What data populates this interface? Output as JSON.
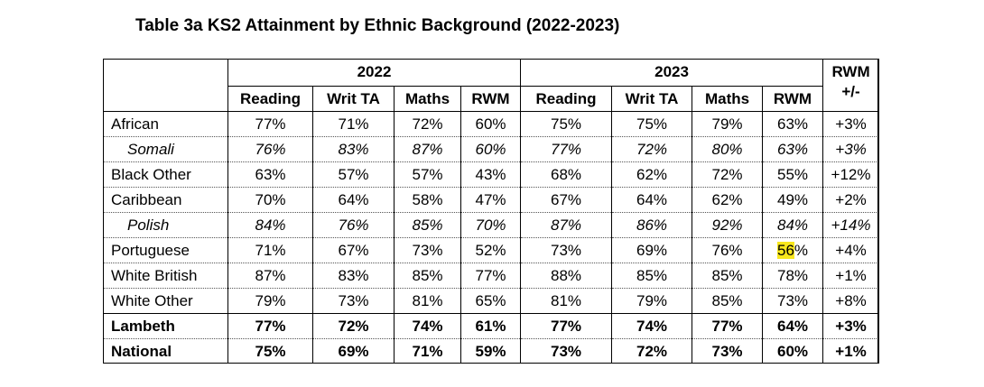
{
  "title": "Table 3a KS2 Attainment by Ethnic Background (2022-2023)",
  "headers": {
    "year1": "2022",
    "year2": "2023",
    "change": "RWM +/-",
    "cols": [
      "Reading",
      "Writ TA",
      "Maths",
      "RWM",
      "Reading",
      "Writ TA",
      "Maths",
      "RWM"
    ]
  },
  "rows": [
    {
      "name": "African",
      "style": "normal",
      "values": [
        "77%",
        "71%",
        "72%",
        "60%",
        "75%",
        "75%",
        "79%",
        "63%",
        "+3%"
      ]
    },
    {
      "name": "Somali",
      "style": "italic",
      "values": [
        "76%",
        "83%",
        "87%",
        "60%",
        "77%",
        "72%",
        "80%",
        "63%",
        "+3%"
      ]
    },
    {
      "name": "Black Other",
      "style": "normal",
      "values": [
        "63%",
        "57%",
        "57%",
        "43%",
        "68%",
        "62%",
        "72%",
        "55%",
        "+12%"
      ]
    },
    {
      "name": "Caribbean",
      "style": "normal",
      "values": [
        "70%",
        "64%",
        "58%",
        "47%",
        "67%",
        "64%",
        "62%",
        "49%",
        "+2%"
      ]
    },
    {
      "name": "Polish",
      "style": "italic",
      "values": [
        "84%",
        "76%",
        "85%",
        "70%",
        "87%",
        "86%",
        "92%",
        "84%",
        "+14%"
      ]
    },
    {
      "name": "Portuguese",
      "style": "normal",
      "values": [
        "71%",
        "67%",
        "73%",
        "52%",
        "73%",
        "69%",
        "76%",
        "56%",
        "+4%"
      ],
      "highlight": {
        "index": 7,
        "text": "56",
        "suffix": "%"
      }
    },
    {
      "name": "White British",
      "style": "normal",
      "values": [
        "87%",
        "83%",
        "85%",
        "77%",
        "88%",
        "85%",
        "85%",
        "78%",
        "+1%"
      ]
    },
    {
      "name": "White Other",
      "style": "normal",
      "values": [
        "79%",
        "73%",
        "81%",
        "65%",
        "81%",
        "79%",
        "85%",
        "73%",
        "+8%"
      ]
    },
    {
      "name": "Lambeth",
      "style": "bold",
      "values": [
        "77%",
        "72%",
        "74%",
        "61%",
        "77%",
        "74%",
        "77%",
        "64%",
        "+3%"
      ]
    },
    {
      "name": "National",
      "style": "bold",
      "values": [
        "75%",
        "69%",
        "71%",
        "59%",
        "73%",
        "72%",
        "73%",
        "60%",
        "+1%"
      ]
    }
  ],
  "colors": {
    "highlight": "#f8e71c",
    "text": "#000000",
    "background": "#ffffff"
  }
}
